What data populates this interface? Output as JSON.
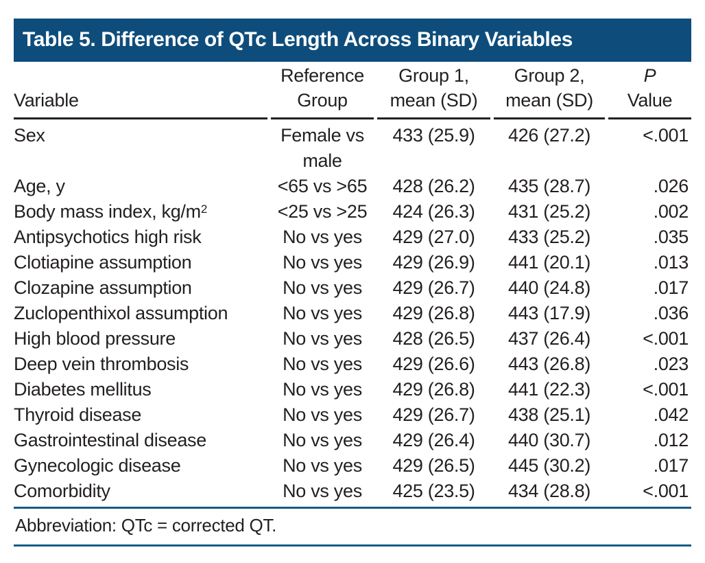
{
  "title": "Table 5. Difference of QTc Length Across Binary Variables",
  "columns": {
    "variable": "Variable",
    "reference_line1": "Reference",
    "reference_line2": "Group",
    "group1_line1": "Group 1,",
    "group1_line2": "mean (SD)",
    "group2_line1": "Group 2,",
    "group2_line2": "mean (SD)",
    "p_line1": "P",
    "p_line2": "Value"
  },
  "rows": [
    {
      "variable": "Sex",
      "reference": "Female vs male",
      "group1": "433 (25.9)",
      "group2": "426 (27.2)",
      "p": "<.001"
    },
    {
      "variable": "Age, y",
      "reference": "<65 vs >65",
      "group1": "428 (26.2)",
      "group2": "435 (28.7)",
      "p": ".026"
    },
    {
      "variable": "Body mass index, kg/m",
      "variable_sup": "2",
      "reference": "<25 vs >25",
      "group1": "424 (26.3)",
      "group2": "431 (25.2)",
      "p": ".002"
    },
    {
      "variable": "Antipsychotics high risk",
      "reference": "No vs yes",
      "group1": "429 (27.0)",
      "group2": "433 (25.2)",
      "p": ".035"
    },
    {
      "variable": "Clotiapine assumption",
      "reference": "No vs yes",
      "group1": "429 (26.9)",
      "group2": "441 (20.1)",
      "p": ".013"
    },
    {
      "variable": "Clozapine assumption",
      "reference": "No vs yes",
      "group1": "429 (26.7)",
      "group2": "440 (24.8)",
      "p": ".017"
    },
    {
      "variable": "Zuclopenthixol assumption",
      "reference": "No vs yes",
      "group1": "429 (26.8)",
      "group2": "443 (17.9)",
      "p": ".036"
    },
    {
      "variable": "High blood pressure",
      "reference": "No vs yes",
      "group1": "428 (26.5)",
      "group2": "437 (26.4)",
      "p": "<.001"
    },
    {
      "variable": "Deep vein thrombosis",
      "reference": "No vs yes",
      "group1": "429 (26.6)",
      "group2": "443 (26.8)",
      "p": ".023"
    },
    {
      "variable": "Diabetes mellitus",
      "reference": "No vs yes",
      "group1": "429 (26.8)",
      "group2": "441 (22.3)",
      "p": "<.001"
    },
    {
      "variable": "Thyroid disease",
      "reference": "No vs yes",
      "group1": "429 (26.7)",
      "group2": "438 (25.1)",
      "p": ".042"
    },
    {
      "variable": "Gastrointestinal disease",
      "reference": "No vs yes",
      "group1": "429 (26.4)",
      "group2": "440 (30.7)",
      "p": ".012"
    },
    {
      "variable": "Gynecologic disease",
      "reference": "No vs yes",
      "group1": "429 (26.5)",
      "group2": "445 (30.2)",
      "p": ".017"
    },
    {
      "variable": "Comorbidity",
      "reference": "No vs yes",
      "group1": "425 (23.5)",
      "group2": "434 (28.8)",
      "p": "<.001"
    }
  ],
  "footnote": "Abbreviation: QTc = corrected QT.",
  "colors": {
    "header_bg": "#0e4d7b",
    "rule_blue": "#175a87",
    "text": "#231f20",
    "header_rule": "#231f20"
  }
}
